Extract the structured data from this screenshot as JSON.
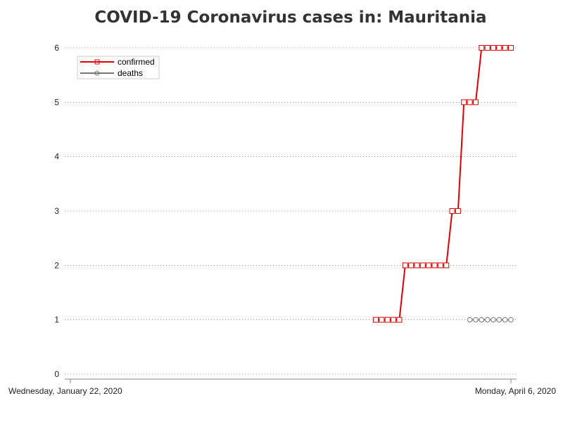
{
  "chart_data": {
    "type": "line",
    "title": "COVID-19 Coronavirus cases in: Mauritania",
    "xlabel": "",
    "ylabel": "",
    "x_start": "2020-01-22",
    "x_end": "2020-04-06",
    "x_tick_labels": [
      "Wednesday, January 22, 2020",
      "Monday, April 6, 2020"
    ],
    "ylim": [
      0,
      6
    ],
    "y_ticks": [
      0,
      1,
      2,
      3,
      4,
      5,
      6
    ],
    "grid": "horizontal dotted",
    "legend_position": "top-left",
    "series": [
      {
        "name": "confirmed",
        "color": "#e00000",
        "marker": "square",
        "points": [
          [
            "2020-03-14",
            1
          ],
          [
            "2020-03-15",
            1
          ],
          [
            "2020-03-16",
            1
          ],
          [
            "2020-03-17",
            1
          ],
          [
            "2020-03-18",
            1
          ],
          [
            "2020-03-19",
            2
          ],
          [
            "2020-03-20",
            2
          ],
          [
            "2020-03-21",
            2
          ],
          [
            "2020-03-22",
            2
          ],
          [
            "2020-03-23",
            2
          ],
          [
            "2020-03-24",
            2
          ],
          [
            "2020-03-25",
            2
          ],
          [
            "2020-03-26",
            2
          ],
          [
            "2020-03-27",
            3
          ],
          [
            "2020-03-28",
            3
          ],
          [
            "2020-03-29",
            5
          ],
          [
            "2020-03-30",
            5
          ],
          [
            "2020-03-31",
            5
          ],
          [
            "2020-04-01",
            6
          ],
          [
            "2020-04-02",
            6
          ],
          [
            "2020-04-03",
            6
          ],
          [
            "2020-04-04",
            6
          ],
          [
            "2020-04-05",
            6
          ],
          [
            "2020-04-06",
            6
          ]
        ]
      },
      {
        "name": "deaths",
        "color": "#777777",
        "marker": "circle",
        "points": [
          [
            "2020-03-30",
            1
          ],
          [
            "2020-03-31",
            1
          ],
          [
            "2020-04-01",
            1
          ],
          [
            "2020-04-02",
            1
          ],
          [
            "2020-04-03",
            1
          ],
          [
            "2020-04-04",
            1
          ],
          [
            "2020-04-05",
            1
          ],
          [
            "2020-04-06",
            1
          ]
        ]
      }
    ]
  }
}
